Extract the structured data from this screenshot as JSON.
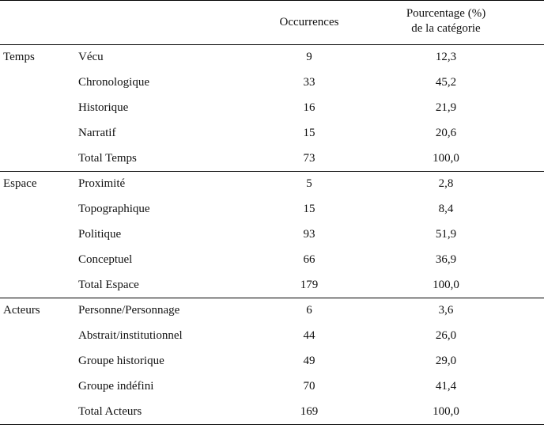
{
  "table": {
    "headers": {
      "category": "",
      "subcategory": "",
      "occurrences": "Occurrences",
      "percentage_line1": "Pourcentage (%)",
      "percentage_line2": "de la catégorie"
    },
    "groups": [
      {
        "name": "Temps",
        "rows": [
          {
            "label": "Vécu",
            "occurrences": "9",
            "percentage": "12,3"
          },
          {
            "label": "Chronologique",
            "occurrences": "33",
            "percentage": "45,2"
          },
          {
            "label": "Historique",
            "occurrences": "16",
            "percentage": "21,9"
          },
          {
            "label": "Narratif",
            "occurrences": "15",
            "percentage": "20,6"
          },
          {
            "label": "Total Temps",
            "occurrences": "73",
            "percentage": "100,0"
          }
        ]
      },
      {
        "name": "Espace",
        "rows": [
          {
            "label": "Proximité",
            "occurrences": "5",
            "percentage": "2,8"
          },
          {
            "label": "Topographique",
            "occurrences": "15",
            "percentage": "8,4"
          },
          {
            "label": "Politique",
            "occurrences": "93",
            "percentage": "51,9"
          },
          {
            "label": "Conceptuel",
            "occurrences": "66",
            "percentage": "36,9"
          },
          {
            "label": "Total Espace",
            "occurrences": "179",
            "percentage": "100,0"
          }
        ]
      },
      {
        "name": "Acteurs",
        "rows": [
          {
            "label": "Personne/Personnage",
            "occurrences": "6",
            "percentage": "3,6"
          },
          {
            "label": "Abstrait/institutionnel",
            "occurrences": "44",
            "percentage": "26,0"
          },
          {
            "label": "Groupe historique",
            "occurrences": "49",
            "percentage": "29,0"
          },
          {
            "label": "Groupe indéfini",
            "occurrences": "70",
            "percentage": "41,4"
          },
          {
            "label": "Total Acteurs",
            "occurrences": "169",
            "percentage": "100,0"
          }
        ]
      }
    ]
  }
}
